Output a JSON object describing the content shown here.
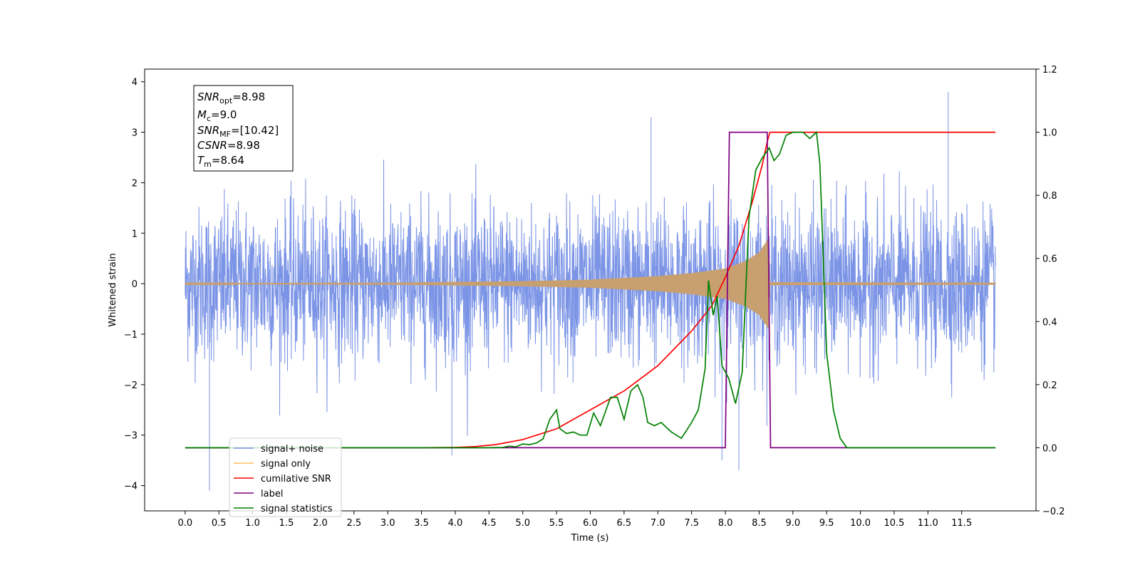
{
  "chart_data": {
    "type": "line",
    "xlabel": "Time (s)",
    "ylabel": "Whitened strain",
    "xlim": [
      -0.6,
      12.6
    ],
    "ylim": [
      -4.5,
      4.25
    ],
    "y2lim": [
      -0.2,
      1.2
    ],
    "x_ticks": [
      "0.0",
      "0.5",
      "1.0",
      "1.5",
      "2.0",
      "2.5",
      "3.0",
      "3.5",
      "4.0",
      "4.5",
      "5.0",
      "5.5",
      "6.0",
      "6.5",
      "7.0",
      "7.5",
      "8.0",
      "8.5",
      "9.0",
      "9.5",
      "10.0",
      "10.5",
      "11.0",
      "11.5"
    ],
    "y_ticks": [
      "4",
      "3",
      "2",
      "1",
      "0",
      "−1",
      "−2",
      "−3",
      "−4"
    ],
    "y2_ticks": [
      "1.2",
      "1.0",
      "0.8",
      "0.6",
      "0.4",
      "0.2",
      "0.0",
      "−0.2"
    ],
    "grid": false,
    "legend_position": "lower-left",
    "info_box": {
      "snr_opt": {
        "var": "SNR",
        "sub": "opt",
        "value": "=8.98"
      },
      "mc": {
        "var": "M",
        "sub": "c",
        "value": "=9.0"
      },
      "snr_mf": {
        "var": "SNR",
        "sub": "MF",
        "value": "=[10.42]"
      },
      "csnr": {
        "var": "CSNR",
        "sub": "",
        "value": "=8.98"
      },
      "tm": {
        "var": "T",
        "sub": "m",
        "value": "=8.64"
      }
    },
    "series": [
      {
        "name": "signal+ noise",
        "color": "#7b94e6",
        "axis": "left",
        "noise_std": 0.75,
        "x_range": [
          0,
          12
        ],
        "outliers": [
          [
            0.36,
            -4.1
          ],
          [
            3.95,
            -3.4
          ],
          [
            8.2,
            -3.7
          ],
          [
            11.3,
            3.8
          ],
          [
            7.95,
            -3.5
          ],
          [
            6.9,
            3.3
          ]
        ]
      },
      {
        "name": "signal only",
        "color": "#c8a070",
        "legend_color": "#ffbf60",
        "axis": "left",
        "envelope": [
          [
            0,
            0.01
          ],
          [
            3,
            0.02
          ],
          [
            5,
            0.05
          ],
          [
            6,
            0.08
          ],
          [
            7,
            0.15
          ],
          [
            7.5,
            0.21
          ],
          [
            8,
            0.3
          ],
          [
            8.3,
            0.45
          ],
          [
            8.5,
            0.62
          ],
          [
            8.64,
            0.9
          ],
          [
            8.66,
            0.03
          ],
          [
            12,
            0.02
          ]
        ]
      },
      {
        "name": "cumilative SNR",
        "color": "#ff0000",
        "axis": "right",
        "points": [
          [
            0,
            0
          ],
          [
            3.5,
            0
          ],
          [
            4.0,
            0.001
          ],
          [
            4.3,
            0.004
          ],
          [
            4.6,
            0.01
          ],
          [
            5.0,
            0.026
          ],
          [
            5.5,
            0.06
          ],
          [
            6.0,
            0.12
          ],
          [
            6.5,
            0.18
          ],
          [
            7.0,
            0.26
          ],
          [
            7.5,
            0.37
          ],
          [
            7.8,
            0.45
          ],
          [
            8.0,
            0.54
          ],
          [
            8.2,
            0.64
          ],
          [
            8.4,
            0.78
          ],
          [
            8.55,
            0.9
          ],
          [
            8.62,
            0.97
          ],
          [
            8.66,
            1.0
          ],
          [
            12,
            1.0
          ]
        ]
      },
      {
        "name": "label",
        "color": "#800080",
        "axis": "right",
        "points": [
          [
            0,
            0
          ],
          [
            8.0,
            0
          ],
          [
            8.06,
            1.0
          ],
          [
            8.6,
            1.0
          ],
          [
            8.62,
            1.0
          ],
          [
            8.67,
            0
          ],
          [
            12,
            0
          ]
        ]
      },
      {
        "name": "signal statistics",
        "color": "#008000",
        "axis": "right",
        "points": [
          [
            0,
            0
          ],
          [
            4.0,
            0
          ],
          [
            4.5,
            0
          ],
          [
            4.7,
            0.001
          ],
          [
            4.8,
            0.005
          ],
          [
            4.9,
            0.003
          ],
          [
            5.0,
            0.012
          ],
          [
            5.1,
            0.01
          ],
          [
            5.2,
            0.015
          ],
          [
            5.3,
            0.028
          ],
          [
            5.4,
            0.09
          ],
          [
            5.5,
            0.12
          ],
          [
            5.55,
            0.06
          ],
          [
            5.65,
            0.045
          ],
          [
            5.75,
            0.05
          ],
          [
            5.85,
            0.04
          ],
          [
            5.95,
            0.04
          ],
          [
            6.05,
            0.11
          ],
          [
            6.15,
            0.07
          ],
          [
            6.3,
            0.16
          ],
          [
            6.4,
            0.16
          ],
          [
            6.5,
            0.09
          ],
          [
            6.6,
            0.18
          ],
          [
            6.7,
            0.2
          ],
          [
            6.78,
            0.16
          ],
          [
            6.85,
            0.08
          ],
          [
            6.95,
            0.07
          ],
          [
            7.05,
            0.08
          ],
          [
            7.2,
            0.05
          ],
          [
            7.35,
            0.03
          ],
          [
            7.5,
            0.08
          ],
          [
            7.6,
            0.12
          ],
          [
            7.7,
            0.25
          ],
          [
            7.75,
            0.53
          ],
          [
            7.82,
            0.42
          ],
          [
            7.88,
            0.48
          ],
          [
            7.95,
            0.26
          ],
          [
            8.05,
            0.22
          ],
          [
            8.15,
            0.14
          ],
          [
            8.25,
            0.24
          ],
          [
            8.35,
            0.73
          ],
          [
            8.45,
            0.88
          ],
          [
            8.55,
            0.92
          ],
          [
            8.65,
            0.95
          ],
          [
            8.72,
            0.91
          ],
          [
            8.8,
            0.93
          ],
          [
            8.9,
            0.99
          ],
          [
            9.0,
            1.0
          ],
          [
            9.15,
            1.0
          ],
          [
            9.25,
            0.98
          ],
          [
            9.35,
            1.0
          ],
          [
            9.4,
            0.9
          ],
          [
            9.45,
            0.6
          ],
          [
            9.5,
            0.3
          ],
          [
            9.6,
            0.12
          ],
          [
            9.7,
            0.03
          ],
          [
            9.8,
            0
          ],
          [
            12.0,
            0
          ]
        ]
      }
    ]
  }
}
